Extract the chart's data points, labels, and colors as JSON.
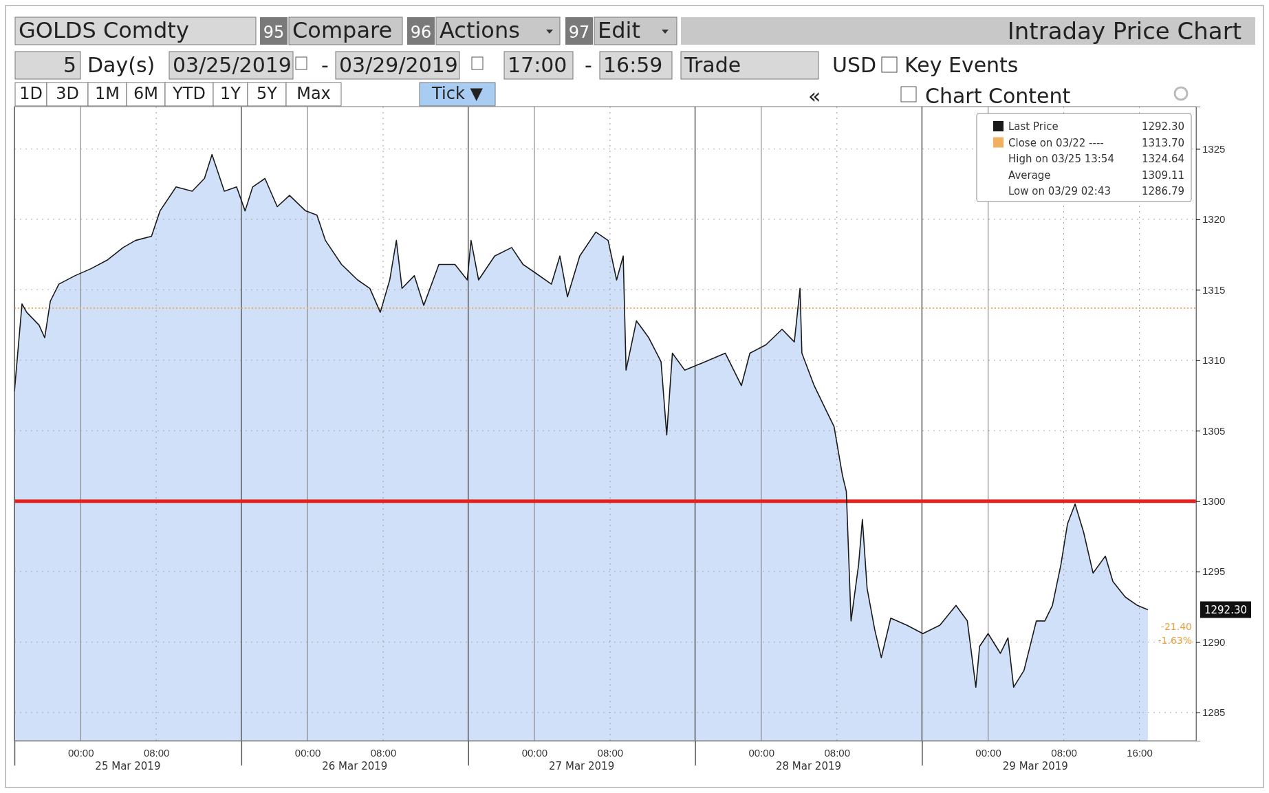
{
  "chart_data": {
    "type": "area",
    "title": "Intraday Price Chart",
    "x": [
      "2019-03-24T17:00",
      "2019-03-24T17:48",
      "2019-03-24T18:18",
      "2019-03-24T19:36",
      "2019-03-24T20:12",
      "2019-03-24T20:48",
      "2019-03-24T21:42",
      "2019-03-24T23:24",
      "2019-03-25T01:06",
      "2019-03-25T02:48",
      "2019-03-25T04:30",
      "2019-03-25T05:48",
      "2019-03-25T07:30",
      "2019-03-25T08:24",
      "2019-03-25T10:06",
      "2019-03-25T11:48",
      "2019-03-25T13:06",
      "2019-03-25T13:54",
      "2019-03-25T15:12",
      "2019-03-25T16:30",
      "2019-03-25T17:24",
      "2019-03-25T18:12",
      "2019-03-25T19:30",
      "2019-03-25T20:48",
      "2019-03-25T22:06",
      "2019-03-25T23:48",
      "2019-03-26T01:00",
      "2019-03-26T01:54",
      "2019-03-26T03:36",
      "2019-03-26T05:18",
      "2019-03-26T06:36",
      "2019-03-26T07:42",
      "2019-03-26T08:42",
      "2019-03-26T09:24",
      "2019-03-26T10:00",
      "2019-03-26T11:18",
      "2019-03-26T12:18",
      "2019-03-26T13:54",
      "2019-03-26T15:36",
      "2019-03-26T16:54",
      "2019-03-26T17:18",
      "2019-03-26T18:06",
      "2019-03-26T19:48",
      "2019-03-26T21:36",
      "2019-03-26T22:48",
      "2019-03-27T00:06",
      "2019-03-27T01:48",
      "2019-03-27T02:42",
      "2019-03-27T03:30",
      "2019-03-27T04:48",
      "2019-03-27T06:30",
      "2019-03-27T07:48",
      "2019-03-27T08:42",
      "2019-03-27T09:24",
      "2019-03-27T09:42",
      "2019-03-27T10:48",
      "2019-03-27T12:06",
      "2019-03-27T13:24",
      "2019-03-27T14:00",
      "2019-03-27T14:36",
      "2019-03-27T15:54",
      "2019-03-27T18:06",
      "2019-03-27T20:12",
      "2019-03-27T21:54",
      "2019-03-27T22:48",
      "2019-03-28T00:30",
      "2019-03-28T02:12",
      "2019-03-28T03:30",
      "2019-03-28T04:06",
      "2019-03-28T04:18",
      "2019-03-28T05:36",
      "2019-03-28T06:54",
      "2019-03-28T07:42",
      "2019-03-28T08:36",
      "2019-03-28T09:00",
      "2019-03-28T09:30",
      "2019-03-28T10:18",
      "2019-03-28T10:42",
      "2019-03-28T11:12",
      "2019-03-28T12:00",
      "2019-03-28T12:42",
      "2019-03-28T13:42",
      "2019-03-28T15:24",
      "2019-03-28T17:06",
      "2019-03-28T18:54",
      "2019-03-28T20:36",
      "2019-03-28T21:48",
      "2019-03-28T22:42",
      "2019-03-28T23:06",
      "2019-03-29T00:00",
      "2019-03-29T01:18",
      "2019-03-29T02:06",
      "2019-03-29T02:42",
      "2019-03-29T03:48",
      "2019-03-29T05:06",
      "2019-03-29T06:00",
      "2019-03-29T06:48",
      "2019-03-29T07:42",
      "2019-03-29T08:24",
      "2019-03-29T09:12",
      "2019-03-29T10:06",
      "2019-03-29T11:06",
      "2019-03-29T12:24",
      "2019-03-29T13:12",
      "2019-03-29T14:30",
      "2019-03-29T15:48",
      "2019-03-29T16:54"
    ],
    "series": [
      {
        "name": "Last Price",
        "color": "#1a1a1a",
        "values": [
          1307.8,
          1314.0,
          1313.4,
          1312.5,
          1311.6,
          1314.2,
          1315.4,
          1316.0,
          1316.5,
          1317.1,
          1318.0,
          1318.5,
          1318.8,
          1320.6,
          1322.3,
          1322.0,
          1322.9,
          1324.6,
          1322.0,
          1322.3,
          1320.6,
          1322.3,
          1322.9,
          1320.9,
          1321.7,
          1320.6,
          1320.3,
          1318.5,
          1316.8,
          1315.7,
          1315.1,
          1313.4,
          1315.7,
          1318.5,
          1315.1,
          1316.0,
          1313.9,
          1316.8,
          1316.8,
          1315.7,
          1318.5,
          1315.7,
          1317.4,
          1318.0,
          1316.8,
          1316.2,
          1315.4,
          1317.4,
          1314.5,
          1317.4,
          1319.1,
          1318.5,
          1315.7,
          1317.4,
          1309.3,
          1312.8,
          1311.6,
          1309.9,
          1304.7,
          1310.5,
          1309.3,
          1309.9,
          1310.5,
          1308.2,
          1310.5,
          1311.1,
          1312.2,
          1311.3,
          1315.1,
          1310.5,
          1308.2,
          1306.4,
          1305.3,
          1301.8,
          1300.7,
          1291.5,
          1295.5,
          1298.7,
          1293.8,
          1290.9,
          1288.9,
          1291.7,
          1291.2,
          1290.6,
          1291.2,
          1292.6,
          1291.5,
          1286.8,
          1289.7,
          1290.6,
          1289.2,
          1290.3,
          1286.8,
          1288.0,
          1291.5,
          1291.5,
          1292.6,
          1295.5,
          1298.4,
          1299.8,
          1297.8,
          1294.9,
          1296.1,
          1294.3,
          1293.2,
          1292.6,
          1292.3
        ]
      }
    ],
    "xlim": [
      "2019-03-24T17:00",
      "2019-03-29T22:00"
    ],
    "xticks": [
      {
        "value": "2019-03-24T17:00",
        "label": null
      },
      {
        "value": "2019-03-25T00:00",
        "label": "00:00"
      },
      {
        "value": "2019-03-25T08:00",
        "label": "08:00"
      },
      {
        "value": "2019-03-25T17:00",
        "label": null
      },
      {
        "value": "2019-03-26T00:00",
        "label": "00:00"
      },
      {
        "value": "2019-03-26T08:00",
        "label": "08:00"
      },
      {
        "value": "2019-03-26T17:00",
        "label": null
      },
      {
        "value": "2019-03-27T00:00",
        "label": "00:00"
      },
      {
        "value": "2019-03-27T08:00",
        "label": "08:00"
      },
      {
        "value": "2019-03-27T17:00",
        "label": null
      },
      {
        "value": "2019-03-28T00:00",
        "label": "00:00"
      },
      {
        "value": "2019-03-28T08:00",
        "label": "08:00"
      },
      {
        "value": "2019-03-28T17:00",
        "label": null
      },
      {
        "value": "2019-03-29T00:00",
        "label": "00:00"
      },
      {
        "value": "2019-03-29T08:00",
        "label": "08:00"
      },
      {
        "value": "2019-03-29T16:00",
        "label": "16:00"
      }
    ],
    "ylim": [
      1283,
      1328
    ],
    "yticks": [
      1285,
      1290,
      1295,
      1300,
      1305,
      1310,
      1315,
      1320,
      1325
    ],
    "grid": true,
    "legend": "top right",
    "ref_lines": [
      {
        "axis": "y",
        "value": 1313.7,
        "color": "#f0b060",
        "line_style": "dotted"
      },
      {
        "axis": "y",
        "value": 1300,
        "color": "#e8201c",
        "line_style": "solid"
      }
    ],
    "annotations": [
      "GOLDS Comdty",
      "95",
      "Compare",
      "96",
      "Actions",
      "97",
      "Edit",
      "5",
      "Day(s)",
      "03/25/2019",
      "-",
      "03/29/2019",
      "17:00",
      "-",
      "16:59",
      "Trade",
      "USD",
      "Key Events",
      "1D",
      "3D",
      "1M",
      "6M",
      "YTD",
      "1Y",
      "5Y",
      "Max",
      "Tick ▼",
      "«",
      "Chart Content",
      "1292.30",
      "Close on 03/22 ----",
      "1313.70",
      "High on 03/25 13:54",
      "1324.64",
      "Average",
      "1309.11",
      "Low on 03/29 02:43",
      "1286.79",
      "1292.30",
      "-21.40",
      "-1.63%",
      "25 Mar 2019",
      "26 Mar 2019",
      "27 Mar 2019",
      "28 Mar 2019",
      "29 Mar 2019"
    ]
  }
}
